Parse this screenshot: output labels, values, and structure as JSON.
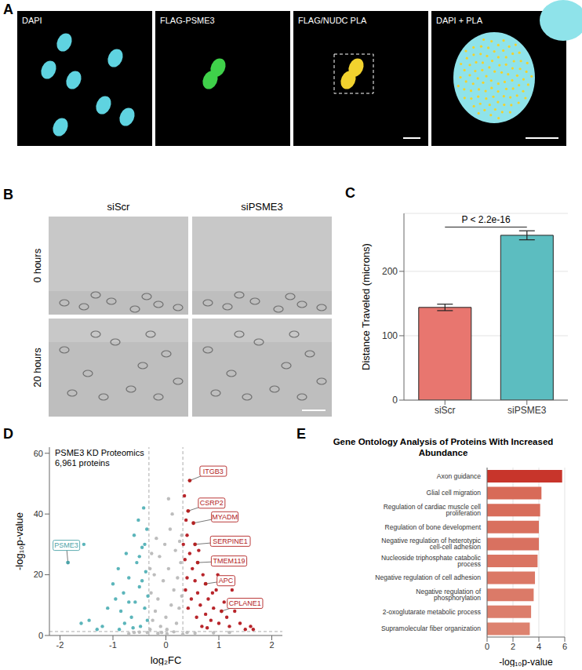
{
  "panel_A": {
    "panel": "A",
    "images": [
      "DAPI",
      "FLAG-PSME3",
      "FLAG/NUDC PLA",
      "DAPI + PLA"
    ]
  },
  "panel_B": {
    "panel": "B",
    "columns": [
      "siScr",
      "siPSME3"
    ],
    "rows": [
      "0 hours",
      "20 hours"
    ]
  },
  "chart_data": [
    {
      "panel": "C",
      "type": "bar",
      "categories": [
        "siScr",
        "siPSME3"
      ],
      "values": [
        144,
        256
      ],
      "errors": [
        5,
        7
      ],
      "colors": [
        "#E8766F",
        "#5CBDC0"
      ],
      "ylabel": "Distance Traveled (microns)",
      "ylim": [
        0,
        290
      ],
      "yticks": [
        0,
        100,
        200
      ],
      "grid": true,
      "annotations": [
        {
          "text": "P < 2.2e-16",
          "between": [
            "siScr",
            "siPSME3"
          ]
        }
      ]
    },
    {
      "panel": "D",
      "type": "scatter",
      "annotations": [
        "PSME3 KD Proteomics",
        "6,961 proteins"
      ],
      "xlabel": "log₂FC",
      "ylabel": "-log₁₀p-value",
      "xlim": [
        -2.2,
        2.2
      ],
      "xticks": [
        -2,
        -1,
        0,
        1,
        2
      ],
      "ylim": [
        0,
        62
      ],
      "yticks": [
        0,
        20,
        40,
        60
      ],
      "grid": false,
      "thresholds": {
        "log2fc": [
          -0.32,
          0.32
        ],
        "neg_log10_p": 1.3
      },
      "series": [
        {
          "color": "#BDBDBD",
          "x": [
            -0.3,
            -0.25,
            -0.2,
            -0.15,
            -0.1,
            -0.05,
            0,
            0.05,
            0.1,
            0.15,
            0.2,
            0.25,
            0.3,
            -0.28,
            -0.22,
            -0.12,
            -0.02,
            0.08,
            0.18,
            0.28,
            -0.18,
            0.12,
            0.22,
            -0.08,
            0.02,
            -0.35,
            0.4,
            -0.5,
            0.55,
            -0.7,
            0.9,
            0.26,
            -0.3,
            -0.27,
            0.3,
            0.05,
            0.02,
            -0.15,
            0.15,
            0.32,
            -0.6,
            1.2
          ],
          "y": [
            2,
            5,
            8,
            12,
            3,
            18,
            6,
            22,
            10,
            15,
            4,
            9,
            13,
            14,
            20,
            26,
            30,
            35,
            28,
            24,
            32,
            40,
            19,
            1,
            2,
            1,
            1,
            1.1,
            0.8,
            0.6,
            0.9,
            31,
            22,
            27,
            33,
            45,
            0.5,
            0.7,
            1.2,
            0.4,
            1,
            1
          ]
        },
        {
          "color": "#5BB5BA",
          "x": [
            -1.55,
            -1.45,
            -1.6,
            -1.3,
            -1.1,
            -1.0,
            -0.95,
            -0.9,
            -0.85,
            -0.8,
            -0.75,
            -0.7,
            -0.65,
            -0.6,
            -0.58,
            -0.55,
            -0.52,
            -0.5,
            -0.48,
            -0.45,
            -0.42,
            -0.4,
            -0.38,
            -0.36,
            -0.35,
            -0.34,
            -0.5,
            -0.62,
            -0.78,
            -1.2,
            -0.88,
            -0.45,
            -0.4,
            -0.7
          ],
          "y": [
            30,
            5,
            4,
            2,
            9,
            17,
            12,
            22,
            8,
            14,
            27,
            19,
            6,
            33,
            11,
            24,
            38,
            16,
            3,
            29,
            42,
            9,
            21,
            35,
            5,
            13,
            26,
            2.5,
            4,
            3,
            2,
            18,
            30,
            11
          ]
        },
        {
          "color": "#B8252B",
          "x": [
            0.35,
            0.38,
            0.4,
            0.45,
            0.5,
            0.55,
            0.6,
            0.65,
            0.7,
            0.75,
            0.8,
            0.85,
            0.9,
            0.95,
            1.0,
            1.1,
            1.15,
            1.2,
            1.3,
            1.4,
            1.5,
            1.6,
            1.65,
            0.36,
            0.4,
            0.48,
            0.58,
            0.68,
            0.78,
            0.88,
            0.33,
            0.37,
            0.42,
            0.62,
            1.25,
            0.98
          ],
          "y": [
            46,
            38,
            33,
            27,
            22,
            18,
            14,
            10,
            20,
            7,
            12,
            5,
            9,
            15,
            4,
            11,
            6,
            3,
            8,
            4,
            2,
            3,
            2,
            25,
            19,
            12,
            6,
            3,
            2.5,
            14,
            30,
            15,
            9,
            28,
            15,
            20
          ]
        }
      ],
      "labeled_points": [
        {
          "label": "PSME3",
          "x": -1.85,
          "y": 24,
          "color": "#4BA3A8"
        },
        {
          "label": "ITGB3",
          "x": 0.45,
          "y": 51,
          "color": "#B22222"
        },
        {
          "label": "CSRP2",
          "x": 0.42,
          "y": 41,
          "color": "#B22222"
        },
        {
          "label": "MYADM",
          "x": 0.52,
          "y": 37,
          "color": "#B22222"
        },
        {
          "label": "SERPINE1",
          "x": 0.55,
          "y": 30,
          "color": "#B22222"
        },
        {
          "label": "TMEM119",
          "x": 0.6,
          "y": 24,
          "color": "#B22222"
        },
        {
          "label": "APC",
          "x": 0.75,
          "y": 17,
          "color": "#B22222"
        },
        {
          "label": "CPLANE1",
          "x": 1.05,
          "y": 8,
          "color": "#B22222"
        }
      ]
    },
    {
      "panel": "E",
      "type": "bar",
      "orientation": "horizontal",
      "title": "Gene Ontology Analysis of Proteins With Increased Abundance",
      "categories": [
        "Axon guidance",
        "Glial cell migration",
        "Regulation of cardiac muscle cell proliferation",
        "Regulation of bone development",
        "Negative regulation of heterotypic cell-cell adhesion",
        "Nucleoside triphosphate catabolic process",
        "Negative regulation of cell adhesion",
        "Negative regulation of phosphorylation",
        "2-oxoglutarate metabolic process",
        "Supramolecular fiber organization"
      ],
      "values": [
        5.8,
        4.2,
        4.1,
        4.0,
        4.0,
        3.9,
        3.7,
        3.6,
        3.4,
        3.3
      ],
      "colors": [
        "#C8352B",
        "#D86A58",
        "#D86D5B",
        "#D9705E",
        "#D97160",
        "#DA7462",
        "#DB7866",
        "#DB7A68",
        "#DC7E6C",
        "#DD826F"
      ],
      "xlabel": "-log₁₀p-value",
      "xlim": [
        0,
        6
      ],
      "xticks": [
        0,
        2,
        4,
        6
      ],
      "grid": true
    }
  ]
}
